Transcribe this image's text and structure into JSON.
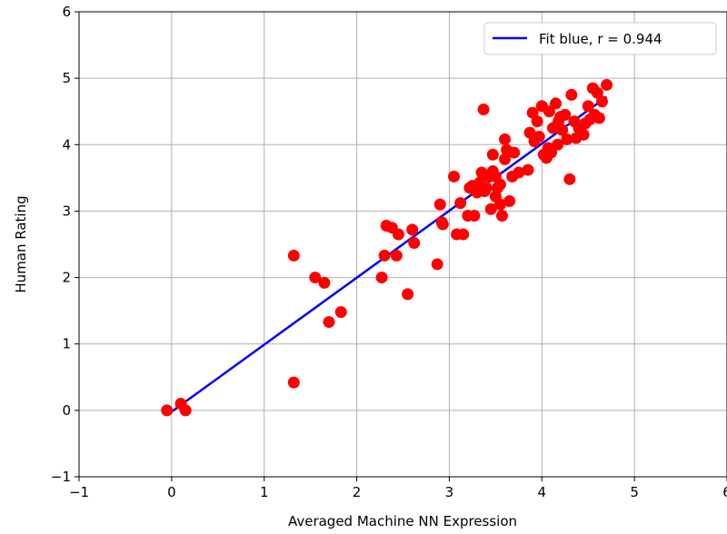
{
  "chart_data": {
    "type": "scatter",
    "title": "",
    "xlabel": "Averaged Machine NN Expression",
    "ylabel": "Human Rating",
    "xlim": [
      -1,
      6
    ],
    "ylim": [
      -1,
      6
    ],
    "xticks": [
      "−1",
      "0",
      "1",
      "2",
      "3",
      "4",
      "5",
      "6"
    ],
    "yticks": [
      "−1",
      "0",
      "1",
      "2",
      "3",
      "4",
      "5",
      "6"
    ],
    "grid": true,
    "legend_position": "top-right",
    "colors": {
      "points": "#ff0000",
      "fit_line": "#0000ff"
    },
    "fit_line": {
      "label": "Fit blue, r = 0.944",
      "x": [
        -0.05,
        4.7
      ],
      "y": [
        -0.07,
        4.72
      ]
    },
    "points": [
      [
        -0.05,
        0.0
      ],
      [
        0.1,
        0.1
      ],
      [
        0.15,
        0.0
      ],
      [
        1.32,
        2.33
      ],
      [
        1.32,
        0.42
      ],
      [
        1.55,
        2.0
      ],
      [
        1.65,
        1.92
      ],
      [
        1.7,
        1.33
      ],
      [
        1.83,
        1.48
      ],
      [
        2.27,
        2.0
      ],
      [
        2.3,
        2.33
      ],
      [
        2.32,
        2.78
      ],
      [
        2.38,
        2.75
      ],
      [
        2.43,
        2.33
      ],
      [
        2.45,
        2.65
      ],
      [
        2.55,
        1.75
      ],
      [
        2.6,
        2.72
      ],
      [
        2.62,
        2.52
      ],
      [
        2.87,
        2.2
      ],
      [
        2.9,
        3.1
      ],
      [
        2.92,
        2.83
      ],
      [
        2.93,
        2.8
      ],
      [
        3.05,
        3.52
      ],
      [
        3.08,
        2.65
      ],
      [
        3.12,
        3.12
      ],
      [
        3.15,
        2.65
      ],
      [
        3.2,
        2.93
      ],
      [
        3.22,
        3.35
      ],
      [
        3.25,
        3.38
      ],
      [
        3.27,
        2.93
      ],
      [
        3.3,
        3.28
      ],
      [
        3.33,
        3.43
      ],
      [
        3.35,
        3.58
      ],
      [
        3.37,
        4.53
      ],
      [
        3.38,
        3.3
      ],
      [
        3.4,
        3.35
      ],
      [
        3.43,
        3.52
      ],
      [
        3.45,
        3.03
      ],
      [
        3.47,
        3.6
      ],
      [
        3.47,
        3.85
      ],
      [
        3.5,
        3.22
      ],
      [
        3.5,
        3.52
      ],
      [
        3.52,
        3.35
      ],
      [
        3.55,
        3.1
      ],
      [
        3.55,
        3.4
      ],
      [
        3.57,
        2.93
      ],
      [
        3.6,
        4.08
      ],
      [
        3.6,
        3.78
      ],
      [
        3.62,
        3.92
      ],
      [
        3.65,
        3.15
      ],
      [
        3.68,
        3.52
      ],
      [
        3.7,
        3.88
      ],
      [
        3.75,
        3.58
      ],
      [
        3.85,
        3.62
      ],
      [
        3.87,
        4.18
      ],
      [
        3.9,
        4.48
      ],
      [
        3.92,
        4.05
      ],
      [
        3.95,
        4.35
      ],
      [
        3.97,
        4.12
      ],
      [
        4.0,
        4.58
      ],
      [
        4.02,
        3.85
      ],
      [
        4.05,
        3.8
      ],
      [
        4.07,
        3.95
      ],
      [
        4.08,
        4.5
      ],
      [
        4.1,
        3.88
      ],
      [
        4.12,
        4.25
      ],
      [
        4.15,
        4.62
      ],
      [
        4.17,
        4.0
      ],
      [
        4.18,
        4.35
      ],
      [
        4.2,
        4.42
      ],
      [
        4.22,
        4.22
      ],
      [
        4.25,
        4.45
      ],
      [
        4.27,
        4.08
      ],
      [
        4.3,
        3.48
      ],
      [
        4.32,
        4.75
      ],
      [
        4.35,
        4.35
      ],
      [
        4.37,
        4.1
      ],
      [
        4.4,
        4.25
      ],
      [
        4.42,
        4.2
      ],
      [
        4.45,
        4.15
      ],
      [
        4.47,
        4.32
      ],
      [
        4.5,
        4.58
      ],
      [
        4.52,
        4.38
      ],
      [
        4.55,
        4.85
      ],
      [
        4.57,
        4.45
      ],
      [
        4.6,
        4.78
      ],
      [
        4.62,
        4.4
      ],
      [
        4.65,
        4.65
      ],
      [
        4.7,
        4.9
      ]
    ]
  }
}
